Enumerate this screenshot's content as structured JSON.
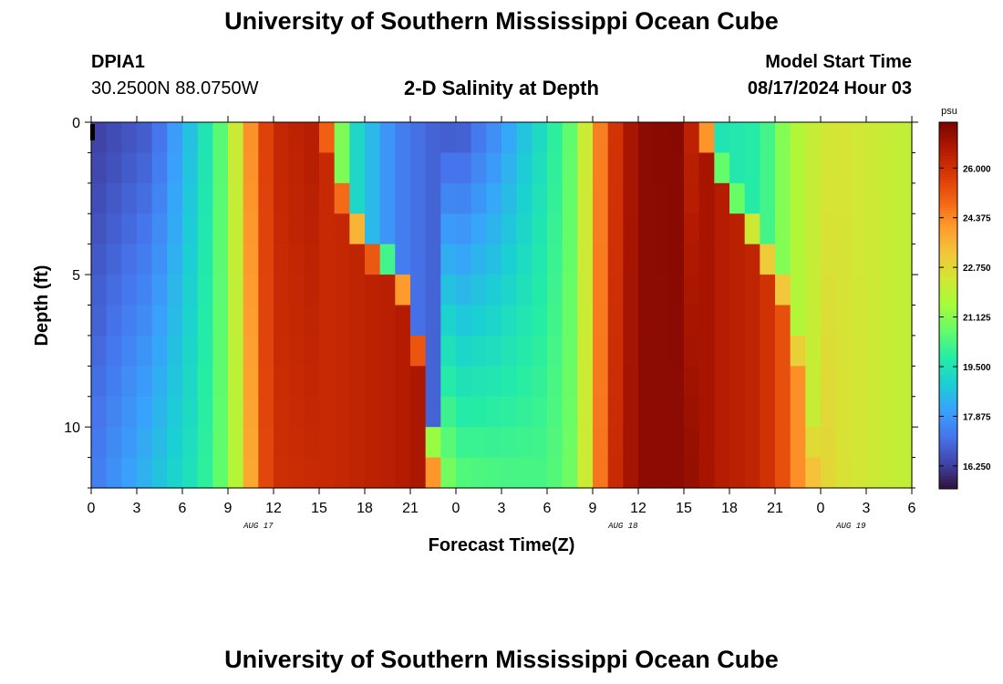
{
  "header": {
    "title": "University of Southern Mississippi Ocean Cube",
    "station": "DPIA1",
    "coords": "30.2500N  88.0750W",
    "chart_title": "2-D Salinity at Depth",
    "start_label": "Model Start Time",
    "start_value": "08/17/2024 Hour 03"
  },
  "footer": {
    "title": "University of Southern Mississippi Ocean Cube"
  },
  "colors": {
    "colormap": [
      "#30123b",
      "#4145ab",
      "#4675ed",
      "#39a2fc",
      "#1bcfd4",
      "#24eca6",
      "#61fc6c",
      "#a4fc3b",
      "#d1e834",
      "#f3c63a",
      "#fe9b2d",
      "#f36315",
      "#d93806",
      "#b11901",
      "#7a0402"
    ]
  },
  "chart_data": {
    "type": "heatmap",
    "title": "2-D Salinity at Depth",
    "xlabel": "Forecast Time(Z)",
    "ylabel": "Depth (ft)",
    "x_tick_labels": [
      "0",
      "3",
      "6",
      "9",
      "12",
      "15",
      "18",
      "21",
      "0",
      "3",
      "6",
      "9",
      "12",
      "15",
      "18",
      "21",
      "0",
      "3",
      "6"
    ],
    "date_labels": [
      {
        "label": "AUG 17",
        "hour": 11
      },
      {
        "label": "AUG 18",
        "hour": 35
      },
      {
        "label": "AUG 19",
        "hour": 50
      }
    ],
    "xlim": [
      0,
      54
    ],
    "ylim": [
      0,
      12.0
    ],
    "y_tick_labels": [
      "0",
      "5",
      "10"
    ],
    "y_tick_values": [
      0,
      5,
      10
    ],
    "colorbar": {
      "unit": "psu",
      "min": 15.5,
      "max": 27.5,
      "tick_labels": [
        "26.000",
        "24.375",
        "22.750",
        "21.125",
        "19.500",
        "17.875",
        "16.250"
      ],
      "tick_values": [
        26.0,
        24.375,
        22.75,
        21.125,
        19.5,
        17.875,
        16.25
      ]
    },
    "depth_levels_ft": [
      0.5,
      1.5,
      2.5,
      3.5,
      4.5,
      5.5,
      6.5,
      7.5,
      8.5,
      9.5,
      10.5,
      11.5
    ],
    "time_step_hours": 1,
    "salinity_keyframes": [
      {
        "hour": 0,
        "surface": 16.2,
        "bottom": 17.3
      },
      {
        "hour": 4,
        "surface": 16.8,
        "bottom": 18.6
      },
      {
        "hour": 7,
        "surface": 19.0,
        "bottom": 19.6
      },
      {
        "hour": 9,
        "surface": 21.0,
        "bottom": 21.0
      },
      {
        "hour": 10,
        "surface": 23.5,
        "bottom": 22.6
      },
      {
        "hour": 11,
        "surface": 25.0,
        "bottom": 25.0
      },
      {
        "hour": 12,
        "surface": 26.2,
        "bottom": 26.0
      },
      {
        "hour": 15,
        "surface": 26.6,
        "bottom": 26.2
      },
      {
        "hour": 16,
        "surface": 22.5,
        "bottom": 26.2
      },
      {
        "hour": 17,
        "surface": 19.5,
        "bottom": 26.3
      },
      {
        "hour": 20,
        "surface": 17.5,
        "bottom": 26.5
      },
      {
        "hour": 22,
        "surface": 17.0,
        "bottom": 26.8
      },
      {
        "hour": 23,
        "surface": 16.8,
        "bottom": 21.5
      },
      {
        "hour": 24,
        "surface": 16.5,
        "bottom": 20.6
      },
      {
        "hour": 27,
        "surface": 17.8,
        "bottom": 20.4
      },
      {
        "hour": 30,
        "surface": 19.5,
        "bottom": 20.3
      },
      {
        "hour": 32,
        "surface": 21.0,
        "bottom": 21.0
      },
      {
        "hour": 33,
        "surface": 23.5,
        "bottom": 23.5
      },
      {
        "hour": 34,
        "surface": 25.5,
        "bottom": 25.8
      },
      {
        "hour": 36,
        "surface": 27.2,
        "bottom": 27.2
      },
      {
        "hour": 39,
        "surface": 27.3,
        "bottom": 27.2
      },
      {
        "hour": 40,
        "surface": 25.5,
        "bottom": 27.0
      },
      {
        "hour": 41,
        "surface": 19.5,
        "bottom": 26.6
      },
      {
        "hour": 44,
        "surface": 19.8,
        "bottom": 26.3
      },
      {
        "hour": 46,
        "surface": 21.5,
        "bottom": 25.0
      },
      {
        "hour": 47,
        "surface": 22.0,
        "bottom": 23.5
      },
      {
        "hour": 49,
        "surface": 22.5,
        "bottom": 22.6
      },
      {
        "hour": 52,
        "surface": 22.2,
        "bottom": 22.2
      },
      {
        "hour": 54,
        "surface": 22.0,
        "bottom": 22.0
      }
    ],
    "transition_depth_ft": [
      {
        "hour": 15,
        "depth": 0.0
      },
      {
        "hour": 16,
        "depth": 1.5
      },
      {
        "hour": 17,
        "depth": 3.0
      },
      {
        "hour": 19,
        "depth": 4.5
      },
      {
        "hour": 21,
        "depth": 5.5
      },
      {
        "hour": 23,
        "depth": 12.0
      },
      {
        "hour": 40,
        "depth": 0.0
      },
      {
        "hour": 42,
        "depth": 2.5
      },
      {
        "hour": 44,
        "depth": 4.0
      },
      {
        "hour": 46,
        "depth": 6.0
      },
      {
        "hour": 48,
        "depth": 12.0
      }
    ]
  }
}
